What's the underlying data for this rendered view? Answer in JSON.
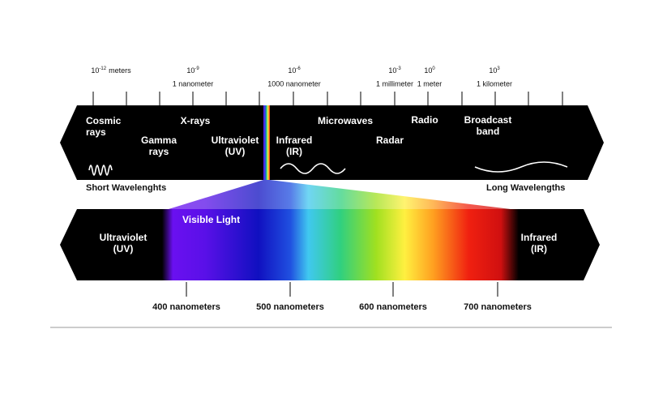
{
  "top_scale": [
    {
      "base": "10",
      "exponent": "-12",
      "unit": "meters"
    },
    {
      "base": "10",
      "exponent": "-9",
      "unit": "1 nanometer"
    },
    {
      "base": "10",
      "exponent": "-6",
      "unit": "1000 nanometer"
    },
    {
      "base": "10",
      "exponent": "-3",
      "unit": "1 millimeter"
    },
    {
      "base": "10",
      "exponent": "0",
      "unit": "1 meter"
    },
    {
      "base": "10",
      "exponent": "3",
      "unit": "1 kilometer"
    }
  ],
  "top_bar": {
    "labels": [
      {
        "lines": [
          "Cosmic",
          "rays"
        ]
      },
      {
        "lines": [
          "Gamma",
          "rays"
        ]
      },
      {
        "lines": [
          "X-rays"
        ]
      },
      {
        "lines": [
          "Ultraviolet",
          "(UV)"
        ]
      },
      {
        "lines": [
          "Infrared",
          "(IR)"
        ]
      },
      {
        "lines": [
          "Microwaves"
        ]
      },
      {
        "lines": [
          "Radar"
        ]
      },
      {
        "lines": [
          "Radio"
        ]
      },
      {
        "lines": [
          "Broadcast",
          "band"
        ]
      }
    ],
    "short_label": "Short Wavelenghts",
    "long_label": "Long Wavelengths"
  },
  "bottom_bar": {
    "left_label": [
      "Ultraviolet",
      "(UV)"
    ],
    "visible_label": "Visible Light",
    "right_label": [
      "Infrared",
      "(IR)"
    ],
    "ticks": [
      "400 nanometers",
      "500 nanometers",
      "600 nanometers",
      "700 nanometers"
    ]
  }
}
